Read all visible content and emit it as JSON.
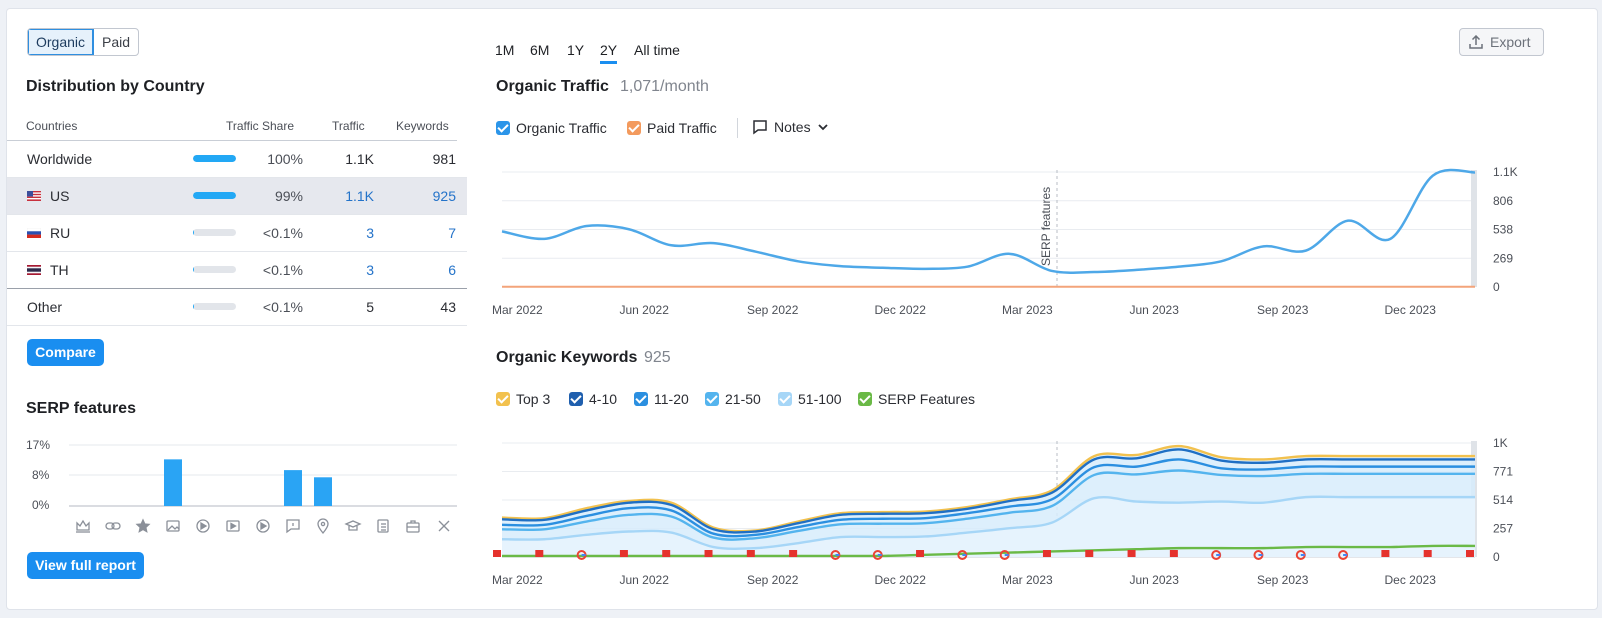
{
  "toggle": {
    "organic": "Organic",
    "paid": "Paid"
  },
  "distribution": {
    "title": "Distribution by Country",
    "headers": {
      "countries": "Countries",
      "share": "Traffic Share",
      "traffic": "Traffic",
      "keywords": "Keywords"
    },
    "rows": [
      {
        "name": "Worldwide",
        "share": "100%",
        "share_value": 100,
        "traffic": "1.1K",
        "keywords": "981"
      },
      {
        "name": "US",
        "share": "99%",
        "share_value": 99,
        "traffic": "1.1K",
        "keywords": "925"
      },
      {
        "name": "RU",
        "share": "<0.1%",
        "share_value": 0.1,
        "traffic": "3",
        "keywords": "7"
      },
      {
        "name": "TH",
        "share": "<0.1%",
        "share_value": 0.1,
        "traffic": "3",
        "keywords": "6"
      },
      {
        "name": "Other",
        "share": "<0.1%",
        "share_value": 0.1,
        "traffic": "5",
        "keywords": "43"
      }
    ],
    "compare_label": "Compare"
  },
  "serp": {
    "title": "SERP features",
    "y_ticks": [
      "17%",
      "8%",
      "0%"
    ],
    "bars": [
      0,
      0,
      0,
      13,
      0,
      0,
      0,
      10,
      8,
      0,
      0,
      0,
      0
    ],
    "icons": [
      "crown-icon",
      "link-icon",
      "star-icon",
      "image-icon",
      "play-icon",
      "video-icon",
      "play-circle-icon",
      "comment-icon",
      "pin-icon",
      "graduation-cap-icon",
      "document-icon",
      "briefcase-icon",
      "x-logo-icon"
    ],
    "full_report_label": "View full report"
  },
  "periods": [
    "1M",
    "6M",
    "1Y",
    "2Y",
    "All time"
  ],
  "export_label": "Export",
  "traffic": {
    "title": "Organic Traffic",
    "value": "1,071/month",
    "legend": {
      "organic": "Organic Traffic",
      "paid": "Paid Traffic",
      "notes": "Notes"
    },
    "annotation": "SERP features"
  },
  "keywords": {
    "title": "Organic Keywords",
    "value": "925",
    "legend": [
      "Top 3",
      "4-10",
      "11-20",
      "21-50",
      "51-100",
      "SERP Features"
    ]
  },
  "chart_data": [
    {
      "type": "line",
      "title": "Organic Traffic",
      "x_ticks": [
        "Mar 2022",
        "Jun 2022",
        "Sep 2022",
        "Dec 2022",
        "Mar 2023",
        "Jun 2023",
        "Sep 2023",
        "Dec 2023"
      ],
      "y_ticks": [
        "1.1K",
        "806",
        "538",
        "269",
        "0"
      ],
      "ylim": [
        0,
        1075
      ],
      "x": [
        0,
        1,
        2,
        3,
        4,
        5,
        6,
        7,
        8,
        9,
        10,
        11,
        12,
        13,
        14,
        15,
        16,
        17,
        18,
        19,
        20,
        21,
        22,
        23
      ],
      "series": [
        {
          "name": "Organic Traffic",
          "color": "#4ea8e8",
          "values": [
            520,
            450,
            570,
            540,
            390,
            410,
            330,
            240,
            195,
            180,
            170,
            190,
            310,
            150,
            140,
            160,
            190,
            240,
            380,
            340,
            620,
            450,
            1040,
            1071
          ]
        },
        {
          "name": "Paid Traffic",
          "color": "#f3a47a",
          "values": [
            2,
            2,
            2,
            2,
            2,
            2,
            2,
            2,
            2,
            2,
            2,
            2,
            2,
            2,
            2,
            2,
            2,
            2,
            2,
            2,
            2,
            2,
            2,
            2
          ]
        }
      ]
    },
    {
      "type": "area",
      "title": "Organic Keywords",
      "x_ticks": [
        "Mar 2022",
        "Jun 2022",
        "Sep 2022",
        "Dec 2022",
        "Mar 2023",
        "Jun 2023",
        "Sep 2023",
        "Dec 2023"
      ],
      "y_ticks": [
        "1K",
        "771",
        "514",
        "257",
        "0"
      ],
      "ylim": [
        0,
        1028
      ],
      "x": [
        0,
        1,
        2,
        3,
        4,
        5,
        6,
        7,
        8,
        9,
        10,
        11,
        12,
        13,
        14,
        15,
        16,
        17,
        18,
        19,
        20,
        21,
        22,
        23
      ],
      "series": [
        {
          "name": "Top 3",
          "color": "#f2c14e",
          "values": [
            355,
            350,
            440,
            505,
            490,
            265,
            240,
            320,
            395,
            405,
            410,
            450,
            520,
            600,
            910,
            920,
            1000,
            900,
            880,
            910,
            910,
            910,
            910,
            910
          ]
        },
        {
          "name": "4-10",
          "color": "#1f6fc4",
          "values": [
            340,
            335,
            420,
            490,
            470,
            250,
            230,
            305,
            380,
            390,
            395,
            435,
            505,
            580,
            880,
            890,
            970,
            870,
            850,
            880,
            880,
            880,
            880,
            880
          ]
        },
        {
          "name": "11-20",
          "color": "#2b8fe0",
          "values": [
            290,
            290,
            370,
            440,
            420,
            210,
            200,
            270,
            335,
            345,
            350,
            395,
            455,
            520,
            810,
            815,
            880,
            800,
            790,
            815,
            815,
            815,
            815,
            815
          ]
        },
        {
          "name": "21-50",
          "color": "#54b4ee",
          "values": [
            250,
            250,
            320,
            380,
            365,
            175,
            170,
            235,
            295,
            300,
            305,
            345,
            400,
            460,
            740,
            745,
            780,
            740,
            730,
            750,
            750,
            750,
            750,
            750
          ]
        },
        {
          "name": "51-100",
          "color": "#a6d6f7",
          "values": [
            160,
            160,
            200,
            230,
            220,
            90,
            80,
            125,
            180,
            180,
            185,
            220,
            260,
            310,
            530,
            500,
            490,
            500,
            490,
            540,
            540,
            540,
            540,
            540
          ]
        },
        {
          "name": "SERP Features",
          "color": "#6ab946",
          "values": [
            10,
            10,
            10,
            10,
            10,
            10,
            10,
            10,
            10,
            10,
            20,
            30,
            40,
            50,
            60,
            70,
            80,
            80,
            80,
            90,
            90,
            90,
            100,
            100
          ]
        }
      ]
    }
  ]
}
